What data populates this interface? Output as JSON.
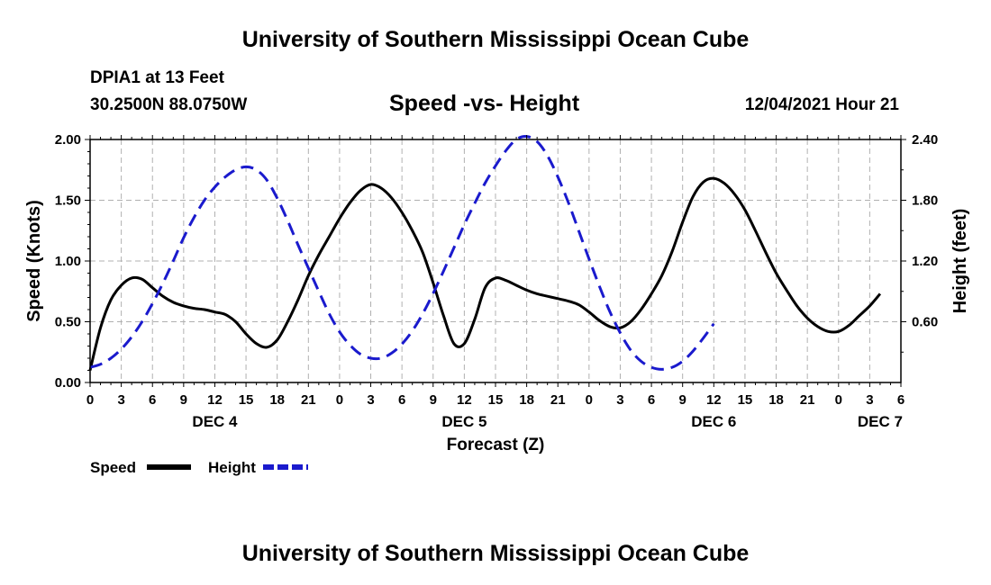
{
  "header": {
    "title": "University of Southern Mississippi Ocean Cube",
    "station": "DPIA1 at 13 Feet",
    "coords": "30.2500N  88.0750W",
    "subtitle": "Speed -vs- Height",
    "datetime": "12/04/2021 Hour 21"
  },
  "footer": {
    "title": "University of Southern Mississippi Ocean Cube"
  },
  "chart_data": {
    "type": "line",
    "title": "Speed -vs- Height",
    "xlabel": "Forecast (Z)",
    "ylabel_left": "Speed (Knots)",
    "ylabel_right": "Height (feet)",
    "x_range_hours": [
      0,
      78
    ],
    "ylim_left": [
      0,
      2.0
    ],
    "ylim_right": [
      0,
      2.4
    ],
    "grid": true,
    "left_ticks": [
      "0.00",
      "0.50",
      "1.00",
      "1.50",
      "2.00"
    ],
    "right_ticks": [
      "0.60",
      "1.20",
      "1.80",
      "2.40"
    ],
    "x_tick_labels": [
      "0",
      "3",
      "6",
      "9",
      "12",
      "15",
      "18",
      "21",
      "0",
      "3",
      "6",
      "9",
      "12",
      "15",
      "18",
      "21",
      "0",
      "3",
      "6",
      "9",
      "12",
      "15",
      "18",
      "21",
      "0",
      "3",
      "6"
    ],
    "day_labels": [
      {
        "label": "DEC 4",
        "hour": 12
      },
      {
        "label": "DEC 5",
        "hour": 36
      },
      {
        "label": "DEC 6",
        "hour": 60
      },
      {
        "label": "DEC 7",
        "hour": 76
      }
    ],
    "legend": [
      {
        "name": "Speed",
        "color": "#000000",
        "dash": "solid"
      },
      {
        "name": "Height",
        "color": "#1a1acd",
        "dash": "dashed"
      }
    ],
    "series": [
      {
        "name": "Speed",
        "axis": "left",
        "color": "#000000",
        "points": [
          [
            0,
            0.1
          ],
          [
            1,
            0.45
          ],
          [
            2,
            0.68
          ],
          [
            3,
            0.8
          ],
          [
            4,
            0.86
          ],
          [
            5,
            0.85
          ],
          [
            6,
            0.78
          ],
          [
            7,
            0.71
          ],
          [
            8,
            0.66
          ],
          [
            9,
            0.63
          ],
          [
            10,
            0.61
          ],
          [
            11,
            0.6
          ],
          [
            12,
            0.58
          ],
          [
            13,
            0.56
          ],
          [
            14,
            0.5
          ],
          [
            15,
            0.4
          ],
          [
            16,
            0.32
          ],
          [
            17,
            0.29
          ],
          [
            18,
            0.35
          ],
          [
            19,
            0.5
          ],
          [
            20,
            0.68
          ],
          [
            21,
            0.88
          ],
          [
            22,
            1.05
          ],
          [
            23,
            1.2
          ],
          [
            24,
            1.35
          ],
          [
            25,
            1.48
          ],
          [
            26,
            1.58
          ],
          [
            27,
            1.63
          ],
          [
            28,
            1.6
          ],
          [
            29,
            1.52
          ],
          [
            30,
            1.4
          ],
          [
            31,
            1.25
          ],
          [
            32,
            1.07
          ],
          [
            33,
            0.82
          ],
          [
            34,
            0.55
          ],
          [
            35,
            0.32
          ],
          [
            36,
            0.32
          ],
          [
            37,
            0.52
          ],
          [
            38,
            0.78
          ],
          [
            39,
            0.86
          ],
          [
            40,
            0.84
          ],
          [
            41,
            0.8
          ],
          [
            42,
            0.76
          ],
          [
            43,
            0.73
          ],
          [
            44,
            0.71
          ],
          [
            45,
            0.69
          ],
          [
            46,
            0.67
          ],
          [
            47,
            0.64
          ],
          [
            48,
            0.58
          ],
          [
            49,
            0.51
          ],
          [
            50,
            0.46
          ],
          [
            51,
            0.45
          ],
          [
            52,
            0.5
          ],
          [
            53,
            0.6
          ],
          [
            54,
            0.73
          ],
          [
            55,
            0.88
          ],
          [
            56,
            1.08
          ],
          [
            57,
            1.32
          ],
          [
            58,
            1.53
          ],
          [
            59,
            1.65
          ],
          [
            60,
            1.68
          ],
          [
            61,
            1.64
          ],
          [
            62,
            1.55
          ],
          [
            63,
            1.42
          ],
          [
            64,
            1.25
          ],
          [
            65,
            1.07
          ],
          [
            66,
            0.9
          ],
          [
            67,
            0.76
          ],
          [
            68,
            0.63
          ],
          [
            69,
            0.53
          ],
          [
            70,
            0.46
          ],
          [
            71,
            0.42
          ],
          [
            72,
            0.42
          ],
          [
            73,
            0.47
          ],
          [
            74,
            0.55
          ],
          [
            75,
            0.63
          ],
          [
            76,
            0.73
          ]
        ]
      },
      {
        "name": "Height",
        "axis": "right",
        "color": "#1a1acd",
        "points": [
          [
            0,
            0.15
          ],
          [
            1,
            0.18
          ],
          [
            2,
            0.24
          ],
          [
            3,
            0.33
          ],
          [
            4,
            0.45
          ],
          [
            5,
            0.6
          ],
          [
            6,
            0.78
          ],
          [
            7,
            0.98
          ],
          [
            8,
            1.2
          ],
          [
            9,
            1.43
          ],
          [
            10,
            1.63
          ],
          [
            11,
            1.8
          ],
          [
            12,
            1.93
          ],
          [
            13,
            2.03
          ],
          [
            14,
            2.1
          ],
          [
            15,
            2.13
          ],
          [
            16,
            2.1
          ],
          [
            17,
            2.0
          ],
          [
            18,
            1.82
          ],
          [
            19,
            1.6
          ],
          [
            20,
            1.36
          ],
          [
            21,
            1.13
          ],
          [
            22,
            0.9
          ],
          [
            23,
            0.68
          ],
          [
            24,
            0.5
          ],
          [
            25,
            0.37
          ],
          [
            26,
            0.28
          ],
          [
            27,
            0.24
          ],
          [
            28,
            0.24
          ],
          [
            29,
            0.29
          ],
          [
            30,
            0.38
          ],
          [
            31,
            0.51
          ],
          [
            32,
            0.68
          ],
          [
            33,
            0.88
          ],
          [
            34,
            1.1
          ],
          [
            35,
            1.33
          ],
          [
            36,
            1.56
          ],
          [
            37,
            1.77
          ],
          [
            38,
            1.97
          ],
          [
            39,
            2.14
          ],
          [
            40,
            2.29
          ],
          [
            41,
            2.4
          ],
          [
            42,
            2.43
          ],
          [
            43,
            2.38
          ],
          [
            44,
            2.24
          ],
          [
            45,
            2.03
          ],
          [
            46,
            1.78
          ],
          [
            47,
            1.5
          ],
          [
            48,
            1.22
          ],
          [
            49,
            0.95
          ],
          [
            50,
            0.7
          ],
          [
            51,
            0.49
          ],
          [
            52,
            0.32
          ],
          [
            53,
            0.21
          ],
          [
            54,
            0.15
          ],
          [
            55,
            0.13
          ],
          [
            56,
            0.15
          ],
          [
            57,
            0.21
          ],
          [
            58,
            0.31
          ],
          [
            59,
            0.44
          ],
          [
            60,
            0.58
          ]
        ]
      }
    ]
  }
}
